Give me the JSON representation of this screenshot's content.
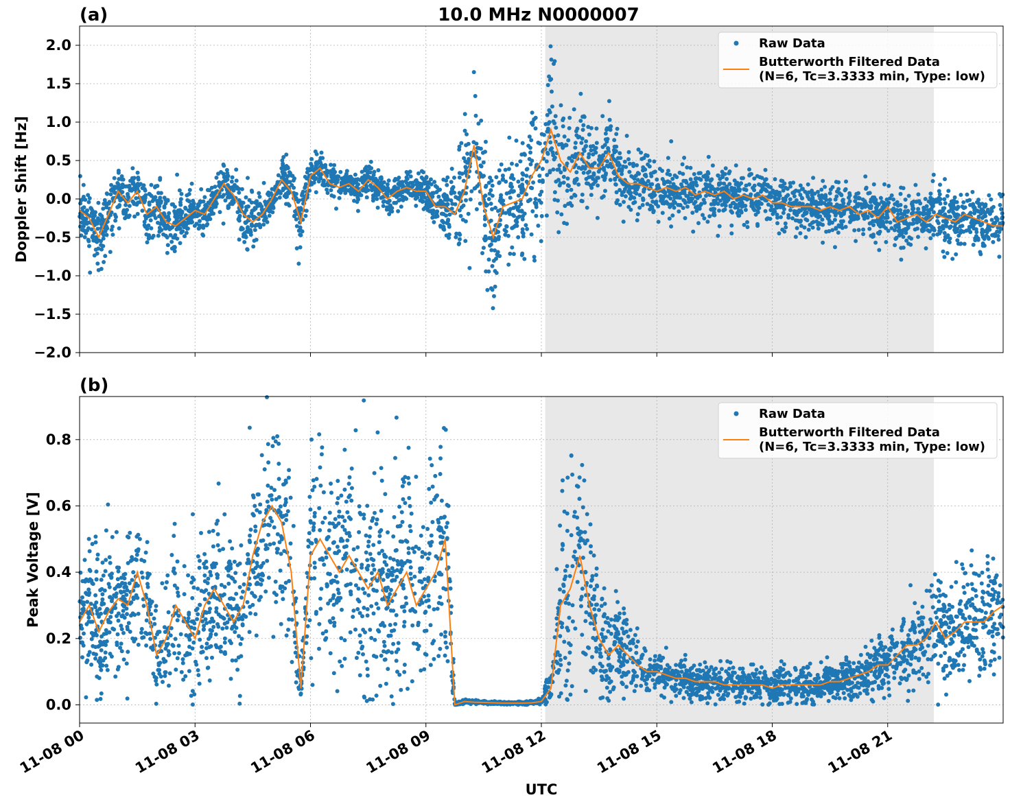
{
  "title": "10.0 MHz N0000007",
  "colors": {
    "raw": "#1f77b4",
    "filtered": "#ff7f0e",
    "shade": "#e8e8e8",
    "grid": "#b0b0b0"
  },
  "chart_data": [
    {
      "type": "scatter",
      "panel_label": "(a)",
      "title": "10.0 MHz N0000007",
      "xlabel": "",
      "ylabel": "Doppler Shift [Hz]",
      "ylim": [
        -2.0,
        2.25
      ],
      "yticks": [
        -2.0,
        -1.5,
        -1.0,
        -0.5,
        0.0,
        0.5,
        1.0,
        1.5,
        2.0
      ],
      "ytick_labels": [
        "−2.0",
        "−1.5",
        "−1.0",
        "−0.5",
        "0.0",
        "0.5",
        "1.0",
        "1.5",
        "2.0"
      ],
      "xlim_hours": [
        0,
        24
      ],
      "shaded_hours": [
        12.1,
        22.2
      ],
      "grid": true,
      "legend_position": "upper-right",
      "legend": [
        "Raw Data",
        "Butterworth Filtered Data",
        "(N=6, Tc=3.3333 min, Type: low)"
      ],
      "series": [
        {
          "name": "Butterworth Filtered Data",
          "x_hours": [
            0,
            0.25,
            0.5,
            0.75,
            1,
            1.25,
            1.5,
            1.75,
            2,
            2.25,
            2.5,
            2.75,
            3,
            3.25,
            3.5,
            3.75,
            4,
            4.25,
            4.5,
            4.75,
            5,
            5.25,
            5.5,
            5.75,
            6,
            6.25,
            6.5,
            6.75,
            7,
            7.25,
            7.5,
            7.75,
            8,
            8.25,
            8.5,
            8.75,
            9,
            9.25,
            9.5,
            9.75,
            10,
            10.25,
            10.5,
            10.75,
            11,
            11.25,
            11.5,
            11.75,
            12,
            12.25,
            12.5,
            12.75,
            13,
            13.25,
            13.5,
            13.75,
            14,
            14.25,
            14.5,
            14.75,
            15,
            15.25,
            15.5,
            15.75,
            16,
            16.25,
            16.5,
            16.75,
            17,
            17.25,
            17.5,
            17.75,
            18,
            18.25,
            18.5,
            18.75,
            19,
            19.25,
            19.5,
            19.75,
            20,
            20.25,
            20.5,
            20.75,
            21,
            21.25,
            21.5,
            21.75,
            22,
            22.25,
            22.5,
            22.75,
            23,
            23.25,
            23.5,
            23.75,
            24
          ],
          "values": [
            -0.15,
            -0.25,
            -0.5,
            -0.2,
            0.1,
            -0.05,
            0.1,
            -0.2,
            -0.1,
            -0.3,
            -0.35,
            -0.25,
            -0.15,
            -0.2,
            0.0,
            0.2,
            0.05,
            -0.2,
            -0.3,
            -0.2,
            0.0,
            0.25,
            0.1,
            -0.3,
            0.3,
            0.4,
            0.2,
            0.15,
            0.2,
            0.1,
            0.25,
            0.15,
            0.0,
            0.1,
            0.15,
            0.1,
            0.1,
            -0.1,
            -0.1,
            -0.2,
            0.1,
            0.7,
            -0.1,
            -0.5,
            -0.1,
            -0.05,
            0.0,
            0.3,
            0.5,
            0.9,
            0.5,
            0.35,
            0.6,
            0.4,
            0.4,
            0.6,
            0.3,
            0.2,
            0.2,
            0.15,
            0.1,
            0.15,
            0.1,
            0.15,
            0.05,
            0.1,
            0.05,
            0.1,
            0.0,
            0.05,
            0.0,
            0.05,
            -0.05,
            -0.05,
            -0.1,
            -0.1,
            -0.1,
            -0.15,
            -0.1,
            -0.15,
            -0.1,
            -0.2,
            -0.15,
            -0.25,
            -0.1,
            -0.3,
            -0.25,
            -0.2,
            -0.3,
            -0.2,
            -0.25,
            -0.3,
            -0.2,
            -0.25,
            -0.3,
            -0.35,
            -0.35
          ]
        },
        {
          "name": "Raw Data",
          "spread": [
            0.3,
            0.35,
            0.45,
            0.3,
            0.3,
            0.3,
            0.3,
            0.35,
            0.35,
            0.35,
            0.4,
            0.3,
            0.3,
            0.25,
            0.25,
            0.3,
            0.3,
            0.3,
            0.3,
            0.25,
            0.25,
            0.25,
            0.3,
            0.35,
            0.2,
            0.2,
            0.2,
            0.2,
            0.2,
            0.2,
            0.2,
            0.2,
            0.2,
            0.2,
            0.2,
            0.2,
            0.2,
            0.25,
            0.3,
            0.5,
            0.8,
            0.8,
            0.9,
            0.8,
            0.6,
            0.6,
            0.7,
            0.8,
            0.9,
            0.8,
            0.7,
            0.6,
            0.6,
            0.5,
            0.5,
            0.4,
            0.4,
            0.3,
            0.3,
            0.3,
            0.3,
            0.3,
            0.3,
            0.3,
            0.3,
            0.3,
            0.3,
            0.3,
            0.3,
            0.3,
            0.3,
            0.3,
            0.3,
            0.3,
            0.3,
            0.3,
            0.3,
            0.3,
            0.3,
            0.3,
            0.3,
            0.3,
            0.3,
            0.3,
            0.3,
            0.3,
            0.3,
            0.3,
            0.3,
            0.35,
            0.35,
            0.35,
            0.35,
            0.35,
            0.35,
            0.35,
            0.35
          ]
        }
      ]
    },
    {
      "type": "scatter",
      "panel_label": "(b)",
      "title": "",
      "xlabel": "UTC",
      "ylabel": "Peak Voltage [V]",
      "ylim": [
        -0.055,
        0.93
      ],
      "yticks": [
        0.0,
        0.2,
        0.4,
        0.6,
        0.8
      ],
      "ytick_labels": [
        "0.0",
        "0.2",
        "0.4",
        "0.6",
        "0.8"
      ],
      "xlim_hours": [
        0,
        24
      ],
      "xticks_hours": [
        0,
        3,
        6,
        9,
        12,
        15,
        18,
        21
      ],
      "xtick_labels": [
        "11-08 00",
        "11-08 03",
        "11-08 06",
        "11-08 09",
        "11-08 12",
        "11-08 15",
        "11-08 18",
        "11-08 21"
      ],
      "shaded_hours": [
        12.1,
        22.2
      ],
      "grid": true,
      "legend_position": "upper-right",
      "legend": [
        "Raw Data",
        "Butterworth Filtered Data",
        "(N=6, Tc=3.3333 min, Type: low)"
      ],
      "series": [
        {
          "name": "Butterworth Filtered Data",
          "x_hours": [
            0,
            0.25,
            0.5,
            0.75,
            1,
            1.25,
            1.5,
            1.75,
            2,
            2.25,
            2.5,
            2.75,
            3,
            3.25,
            3.5,
            3.75,
            4,
            4.25,
            4.5,
            4.75,
            5,
            5.25,
            5.5,
            5.75,
            6,
            6.25,
            6.5,
            6.75,
            7,
            7.25,
            7.5,
            7.75,
            8,
            8.25,
            8.5,
            8.75,
            9,
            9.25,
            9.5,
            9.75,
            10,
            10.25,
            10.5,
            10.75,
            11,
            11.25,
            11.5,
            11.75,
            12,
            12.25,
            12.5,
            12.75,
            13,
            13.25,
            13.5,
            13.75,
            14,
            14.25,
            14.5,
            14.75,
            15,
            15.25,
            15.5,
            15.75,
            16,
            16.25,
            16.5,
            16.75,
            17,
            17.25,
            17.5,
            17.75,
            18,
            18.25,
            18.5,
            18.75,
            19,
            19.25,
            19.5,
            19.75,
            20,
            20.25,
            20.5,
            20.75,
            21,
            21.25,
            21.5,
            21.75,
            22,
            22.25,
            22.5,
            22.75,
            23,
            23.25,
            23.5,
            23.75,
            24
          ],
          "values": [
            0.25,
            0.3,
            0.22,
            0.28,
            0.32,
            0.3,
            0.4,
            0.3,
            0.15,
            0.2,
            0.3,
            0.25,
            0.2,
            0.3,
            0.35,
            0.3,
            0.25,
            0.3,
            0.45,
            0.55,
            0.6,
            0.55,
            0.4,
            0.05,
            0.45,
            0.5,
            0.45,
            0.4,
            0.45,
            0.4,
            0.35,
            0.4,
            0.3,
            0.35,
            0.4,
            0.3,
            0.35,
            0.4,
            0.5,
            0.0,
            0.01,
            0.008,
            0.007,
            0.006,
            0.005,
            0.005,
            0.005,
            0.006,
            0.01,
            0.05,
            0.3,
            0.35,
            0.45,
            0.3,
            0.2,
            0.15,
            0.18,
            0.15,
            0.12,
            0.1,
            0.1,
            0.09,
            0.08,
            0.08,
            0.07,
            0.07,
            0.07,
            0.06,
            0.06,
            0.06,
            0.06,
            0.06,
            0.05,
            0.06,
            0.06,
            0.06,
            0.06,
            0.06,
            0.07,
            0.07,
            0.08,
            0.09,
            0.1,
            0.12,
            0.12,
            0.15,
            0.18,
            0.18,
            0.2,
            0.25,
            0.2,
            0.22,
            0.25,
            0.25,
            0.25,
            0.28,
            0.3
          ]
        },
        {
          "name": "Raw Data",
          "spread": [
            0.15,
            0.2,
            0.2,
            0.2,
            0.2,
            0.2,
            0.2,
            0.2,
            0.12,
            0.15,
            0.2,
            0.2,
            0.2,
            0.2,
            0.22,
            0.22,
            0.22,
            0.22,
            0.22,
            0.25,
            0.25,
            0.25,
            0.25,
            0.03,
            0.3,
            0.3,
            0.3,
            0.3,
            0.3,
            0.3,
            0.3,
            0.3,
            0.25,
            0.3,
            0.3,
            0.25,
            0.3,
            0.3,
            0.3,
            0.005,
            0.006,
            0.005,
            0.004,
            0.004,
            0.004,
            0.004,
            0.004,
            0.005,
            0.008,
            0.05,
            0.3,
            0.3,
            0.3,
            0.25,
            0.2,
            0.15,
            0.12,
            0.1,
            0.07,
            0.06,
            0.05,
            0.05,
            0.05,
            0.05,
            0.05,
            0.05,
            0.05,
            0.05,
            0.05,
            0.05,
            0.05,
            0.05,
            0.05,
            0.05,
            0.05,
            0.05,
            0.05,
            0.05,
            0.05,
            0.05,
            0.05,
            0.06,
            0.07,
            0.08,
            0.08,
            0.1,
            0.12,
            0.12,
            0.12,
            0.15,
            0.15,
            0.15,
            0.15,
            0.15,
            0.15,
            0.15,
            0.15
          ]
        }
      ]
    }
  ]
}
